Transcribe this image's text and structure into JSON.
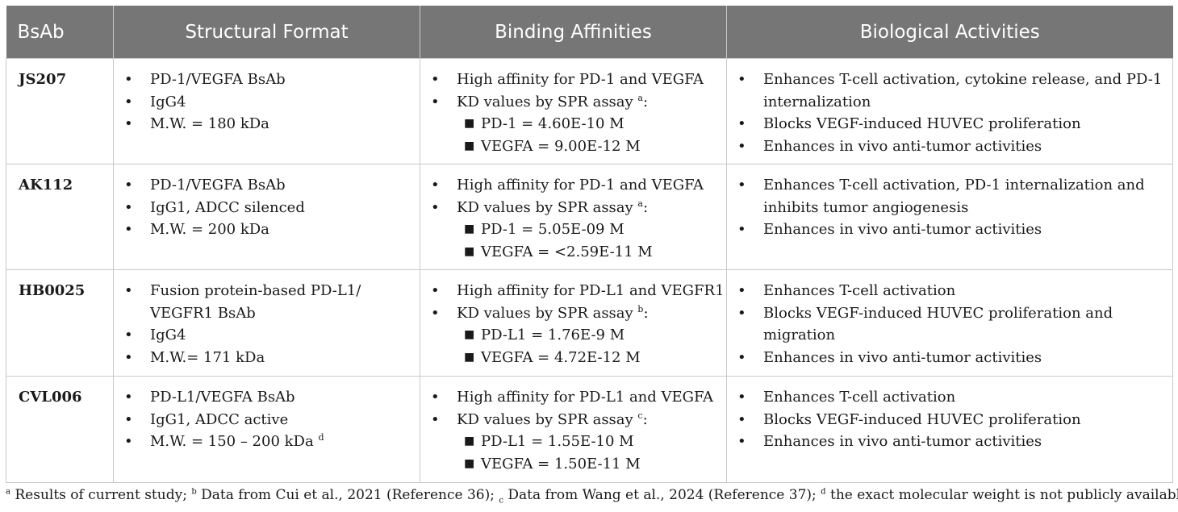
{
  "headers": [
    "BsAb",
    "Structural Format",
    "Binding Affinities",
    "Biological Activities"
  ],
  "rows": [
    {
      "name": "JS207",
      "format": [
        "PD-1/VEGFA BsAb",
        "IgG4",
        "M.W. = 180 kDa"
      ],
      "affinity_main": "High affinity for PD-1 and VEGFA",
      "kd_label": "KD values by SPR assay ",
      "kd_sup": "a",
      "kd_suffix": ":",
      "kd": [
        "PD-1 = 4.60E-10 M",
        "VEGFA = 9.00E-12 M"
      ],
      "activities": [
        "Enhances T-cell activation, cytokine release, and PD-1 internalization",
        "Blocks VEGF-induced HUVEC proliferation",
        "Enhances in vivo anti-tumor activities"
      ]
    },
    {
      "name": "AK112",
      "format": [
        "PD-1/VEGFA BsAb",
        "IgG1, ADCC silenced",
        "M.W. = 200 kDa"
      ],
      "affinity_main": "High affinity for PD-1 and VEGFA",
      "kd_label": "KD values by SPR assay ",
      "kd_sup": "a",
      "kd_suffix": ":",
      "kd": [
        "PD-1 = 5.05E-09 M",
        "VEGFA = <2.59E-11 M"
      ],
      "activities": [
        "Enhances T-cell activation, PD-1 internalization and inhibits tumor angiogenesis",
        "Enhances in vivo anti-tumor activities"
      ]
    },
    {
      "name": "HB0025",
      "format": [
        "Fusion protein-based PD-L1/ VEGFR1 BsAb",
        "IgG4",
        "M.W.= 171 kDa"
      ],
      "affinity_main": "High affinity for PD-L1 and VEGFR1",
      "kd_label": "KD values by SPR assay ",
      "kd_sup": "b",
      "kd_suffix": ":",
      "kd": [
        "PD-L1 = 1.76E-9 M",
        "VEGFA = 4.72E-12 M"
      ],
      "activities": [
        "Enhances T-cell activation",
        "Blocks VEGF-induced HUVEC proliferation and migration",
        "Enhances in vivo anti-tumor activities"
      ]
    },
    {
      "name": "CVL006",
      "format": [
        "PD-L1/VEGFA BsAb",
        "IgG1, ADCC active",
        "M.W. = 150 – 200 kDa"
      ],
      "format_last_sup": "d",
      "affinity_main": "High affinity for PD-L1 and VEGFA",
      "kd_label": "KD values by SPR assay ",
      "kd_sup": "c",
      "kd_suffix": ":",
      "kd": [
        "PD-L1 = 1.55E-10 M",
        "VEGFA = 1.50E-11 M"
      ],
      "activities": [
        "Enhances T-cell activation",
        "Blocks VEGF-induced HUVEC proliferation",
        "Enhances in vivo anti-tumor activities"
      ]
    }
  ],
  "bullet": "•",
  "square": "■",
  "footnote": {
    "a_mark": "a",
    "a_text": " Results of current study; ",
    "b_mark": "b",
    "b_text": " Data from Cui et al., 2021 (Reference 36); ",
    "c_mark": "c",
    "c_text": " Data from Wang et al., 2024 (Reference 37); ",
    "d_mark": "d",
    "d_text": " the exact molecular weight is not publicly available."
  }
}
